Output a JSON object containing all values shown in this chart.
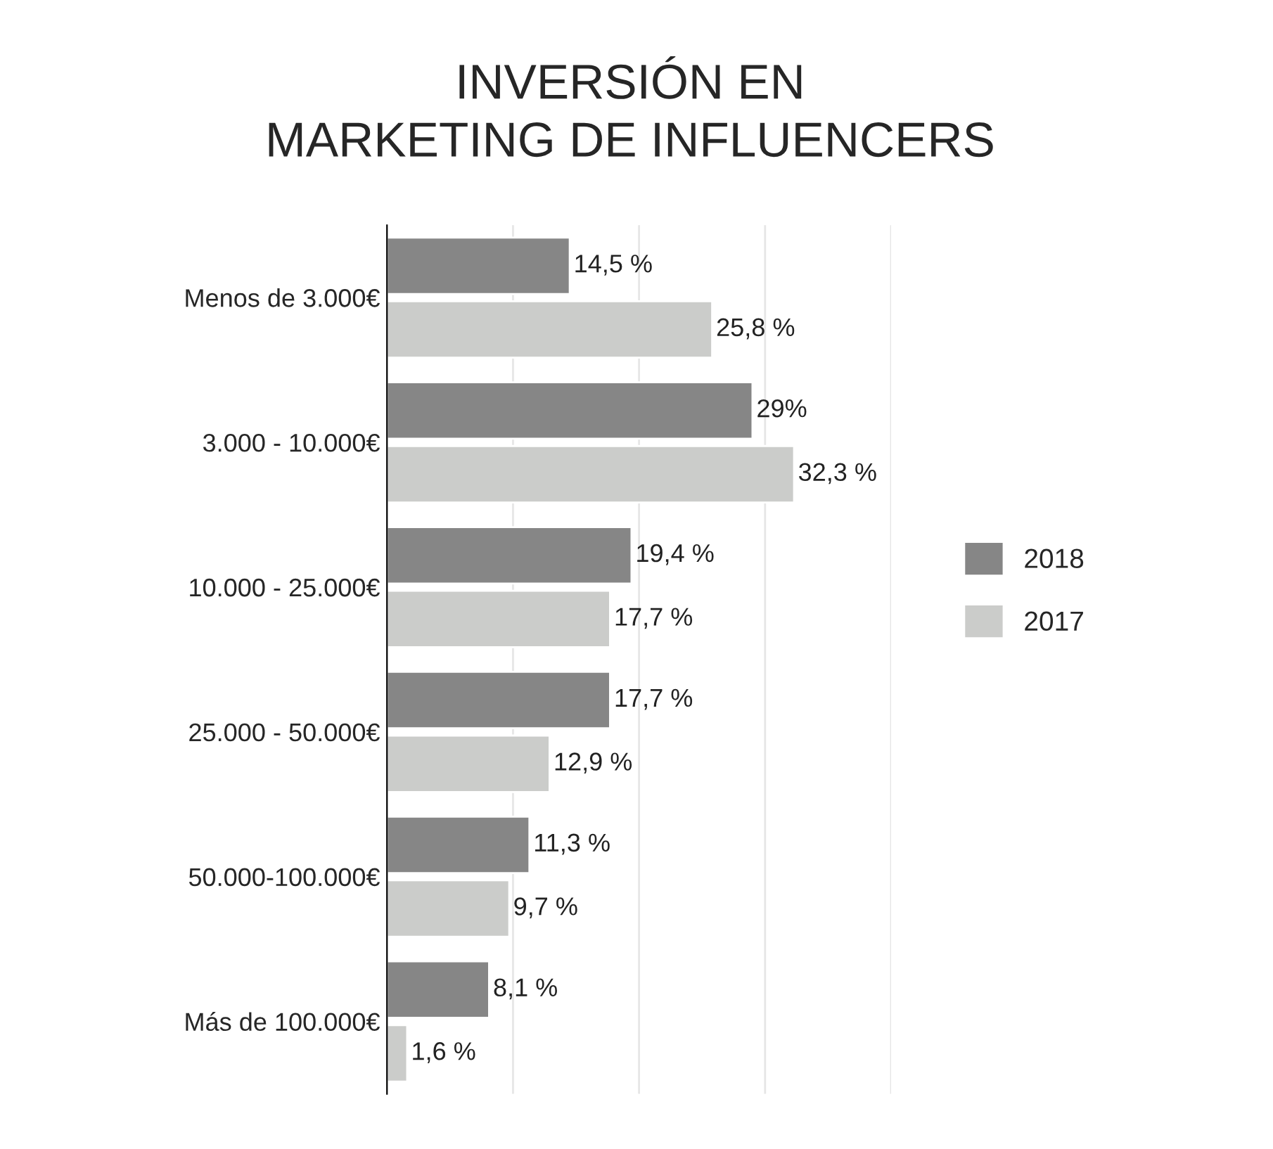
{
  "chart_data": {
    "type": "bar",
    "orientation": "horizontal",
    "title": "INVERSIÓN EN\nMARKETING DE INFLUENCERS",
    "categories": [
      "Menos de 3.000€",
      "3.000 - 10.000€",
      "10.000 - 25.000€",
      "25.000 - 50.000€",
      "50.000-100.000€",
      "Más de 100.000€"
    ],
    "series": [
      {
        "name": "2018",
        "color": "#868686",
        "values": [
          14.5,
          29,
          19.4,
          17.7,
          11.3,
          8.1
        ],
        "value_labels": [
          "14,5 %",
          "29%",
          "19,4 %",
          "17,7 %",
          "11,3 %",
          "8,1 %"
        ]
      },
      {
        "name": "2017",
        "color": "#cbccca",
        "values": [
          25.8,
          32.3,
          17.7,
          12.9,
          9.7,
          1.6
        ],
        "value_labels": [
          "25,8 %",
          "32,3 %",
          "17,7 %",
          "12,9 %",
          "9,7 %",
          "1,6 %"
        ]
      }
    ],
    "xlim": [
      0,
      40
    ],
    "xticks": [
      {
        "value": 10,
        "label": null
      },
      {
        "value": 20,
        "label": null
      },
      {
        "value": 30,
        "label": null
      },
      {
        "value": 40,
        "label": null
      }
    ],
    "tick_labels": "y",
    "grid": "x",
    "legend": "right"
  }
}
